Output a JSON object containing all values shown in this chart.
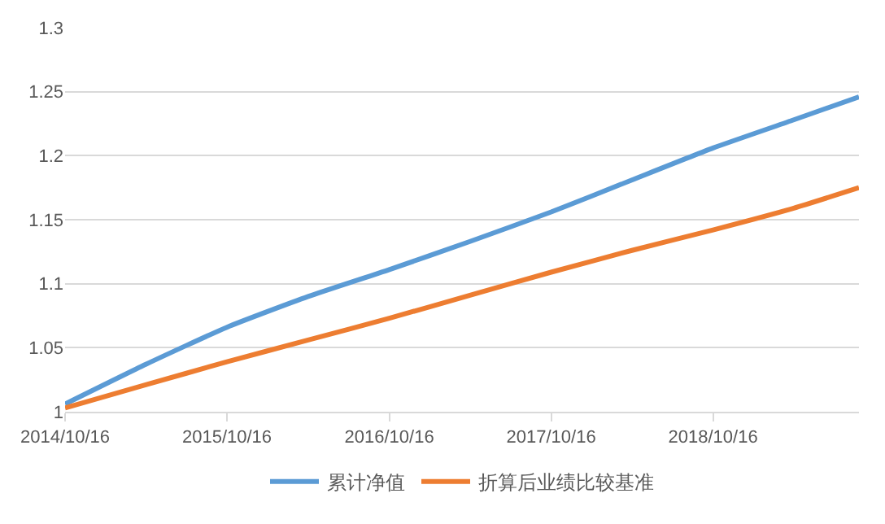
{
  "chart_data": {
    "type": "line",
    "xlim": [
      "2014-10-16",
      "2019-09-10"
    ],
    "xticks": [
      {
        "value": "2014-10-16",
        "label": "2014/10/16"
      },
      {
        "value": "2015-10-16",
        "label": "2015/10/16"
      },
      {
        "value": "2016-10-16",
        "label": "2016/10/16"
      },
      {
        "value": "2017-10-16",
        "label": "2017/10/16"
      },
      {
        "value": "2018-10-16",
        "label": "2018/10/16"
      }
    ],
    "ylim": [
      1,
      1.3
    ],
    "yticks": [
      1,
      1.05,
      1.1,
      1.15,
      1.2,
      1.25,
      1.3
    ],
    "x": [
      "2014-10-16",
      "2015-04-16",
      "2015-10-16",
      "2016-04-16",
      "2016-10-16",
      "2017-04-16",
      "2017-10-16",
      "2018-04-16",
      "2018-10-16",
      "2019-04-16",
      "2019-09-10"
    ],
    "series": [
      {
        "name": "累计净值",
        "color": "#5b9bd5",
        "values": [
          1.006,
          1.037,
          1.066,
          1.09,
          1.111,
          1.133,
          1.156,
          1.181,
          1.206,
          1.228,
          1.246
        ]
      },
      {
        "name": "折算后业绩比较基准",
        "color": "#ed7d31",
        "values": [
          1.003,
          1.021,
          1.039,
          1.056,
          1.073,
          1.091,
          1.109,
          1.126,
          1.142,
          1.159,
          1.175
        ]
      }
    ],
    "grid": "y",
    "legend": "bottom",
    "marker": "none",
    "line_style": "solid"
  }
}
